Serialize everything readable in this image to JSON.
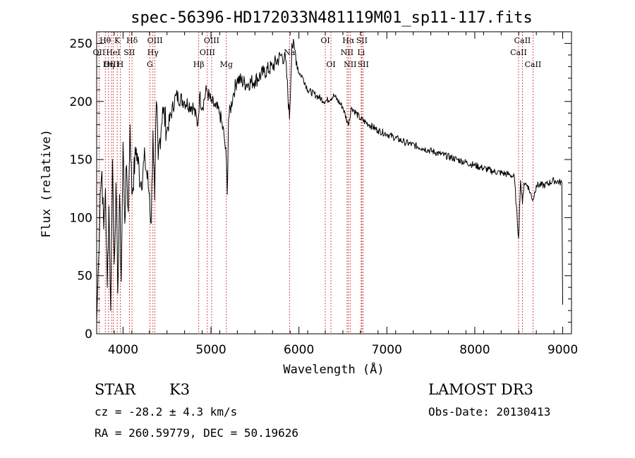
{
  "chart_data": {
    "type": "line",
    "title": "spec-56396-HD172033N481119M01_sp11-117.fits",
    "xlabel": "Wavelength (Å)",
    "ylabel": "Flux (relative)",
    "xlim": [
      3700,
      9100
    ],
    "ylim": [
      0,
      260
    ],
    "xticks": [
      4000,
      5000,
      6000,
      7000,
      8000,
      9000
    ],
    "yticks": [
      0,
      50,
      100,
      150,
      200,
      250
    ],
    "series": [
      {
        "name": "spectrum",
        "x": [
          3700,
          3720,
          3740,
          3760,
          3780,
          3800,
          3820,
          3840,
          3860,
          3880,
          3900,
          3920,
          3940,
          3960,
          3980,
          4000,
          4020,
          4040,
          4060,
          4080,
          4100,
          4150,
          4200,
          4250,
          4300,
          4320,
          4340,
          4360,
          4380,
          4400,
          4450,
          4500,
          4600,
          4700,
          4800,
          4850,
          4870,
          4900,
          4950,
          5000,
          5050,
          5100,
          5150,
          5175,
          5185,
          5200,
          5250,
          5300,
          5400,
          5500,
          5600,
          5700,
          5800,
          5850,
          5893,
          5920,
          5950,
          6000,
          6050,
          6100,
          6200,
          6300,
          6400,
          6500,
          6560,
          6600,
          6700,
          6800,
          6900,
          7000,
          7200,
          7400,
          7600,
          7800,
          8000,
          8200,
          8400,
          8450,
          8498,
          8520,
          8542,
          8560,
          8600,
          8662,
          8700,
          8800,
          8900,
          8990,
          9000
        ],
        "y": [
          10,
          60,
          120,
          140,
          90,
          125,
          40,
          110,
          20,
          150,
          60,
          130,
          35,
          120,
          45,
          165,
          95,
          145,
          105,
          180,
          120,
          160,
          130,
          150,
          120,
          95,
          175,
          115,
          200,
          150,
          195,
          175,
          205,
          200,
          195,
          180,
          205,
          195,
          210,
          200,
          195,
          190,
          170,
          150,
          120,
          185,
          205,
          220,
          215,
          218,
          225,
          230,
          240,
          235,
          185,
          250,
          245,
          225,
          220,
          210,
          205,
          200,
          205,
          195,
          180,
          195,
          185,
          180,
          175,
          172,
          165,
          160,
          155,
          150,
          145,
          140,
          137,
          135,
          82,
          132,
          112,
          130,
          128,
          115,
          128,
          128,
          132,
          130,
          25
        ]
      }
    ],
    "spectral_lines": [
      {
        "name": "Hθ",
        "wavelength": 3798,
        "row": 1
      },
      {
        "name": "OII",
        "wavelength": 3727,
        "row": 2
      },
      {
        "name": "OIII",
        "wavelength": 3869,
        "row": 3
      },
      {
        "name": "K",
        "wavelength": 3934,
        "row": 1
      },
      {
        "name": "HeI",
        "wavelength": 3889,
        "row": 2
      },
      {
        "name": "Hη",
        "wavelength": 3835,
        "row": 3
      },
      {
        "name": "SII",
        "wavelength": 4072,
        "row": 2
      },
      {
        "name": "H",
        "wavelength": 3968,
        "row": 3
      },
      {
        "name": "Hδ",
        "wavelength": 4102,
        "row": 1
      },
      {
        "name": "OIII",
        "wavelength": 4363,
        "row": 1
      },
      {
        "name": "Hγ",
        "wavelength": 4340,
        "row": 2
      },
      {
        "name": "G",
        "wavelength": 4305,
        "row": 3
      },
      {
        "name": "Hβ",
        "wavelength": 4861,
        "row": 3
      },
      {
        "name": "OIII",
        "wavelength": 5007,
        "row": 1
      },
      {
        "name": "OIII",
        "wavelength": 4959,
        "row": 2
      },
      {
        "name": "Mg",
        "wavelength": 5175,
        "row": 3
      },
      {
        "name": "Na",
        "wavelength": 5893,
        "row": 2
      },
      {
        "name": "OI",
        "wavelength": 6300,
        "row": 1
      },
      {
        "name": "OI",
        "wavelength": 6364,
        "row": 3
      },
      {
        "name": "Hα",
        "wavelength": 6563,
        "row": 1
      },
      {
        "name": "SII",
        "wavelength": 6716,
        "row": 1
      },
      {
        "name": "NII",
        "wavelength": 6548,
        "row": 2
      },
      {
        "name": "Li",
        "wavelength": 6708,
        "row": 2
      },
      {
        "name": "NII",
        "wavelength": 6583,
        "row": 3
      },
      {
        "name": "SII",
        "wavelength": 6731,
        "row": 3
      },
      {
        "name": "CaII",
        "wavelength": 8542,
        "row": 1
      },
      {
        "name": "CaII",
        "wavelength": 8498,
        "row": 2
      },
      {
        "name": "CaII",
        "wavelength": 8662,
        "row": 3
      }
    ]
  },
  "info": {
    "class": "STAR",
    "subclass": "K3",
    "survey": "LAMOST DR3",
    "cz": "cz = -28.2 ± 4.3 km/s",
    "obs_date": "Obs-Date: 20130413",
    "coords": "RA = 260.59779, DEC =  50.19626"
  },
  "colors": {
    "spectrum": "#000000",
    "line_markers": "#cc2222",
    "axes": "#000000"
  }
}
